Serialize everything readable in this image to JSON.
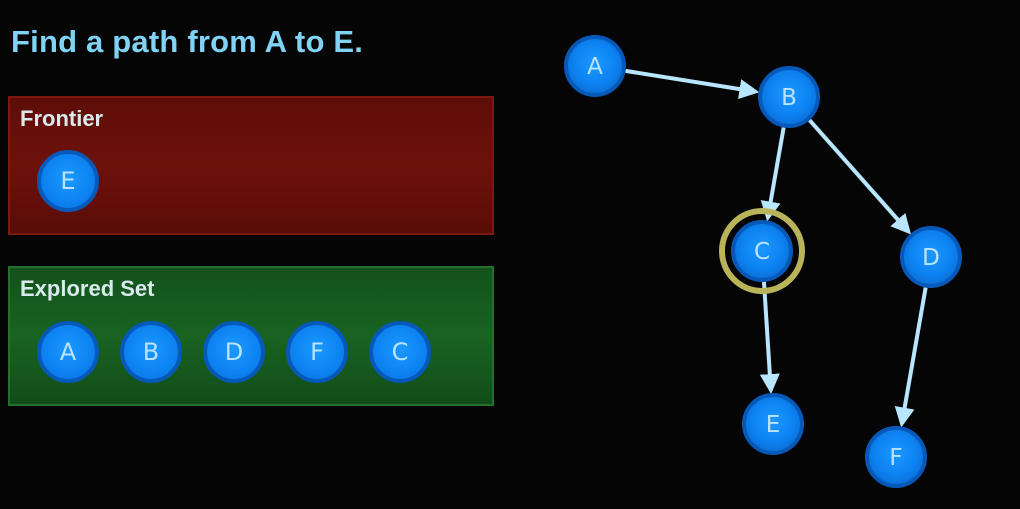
{
  "title": "Find a path from A to E.",
  "frontier": {
    "label": "Frontier",
    "nodes": [
      "E"
    ]
  },
  "explored": {
    "label": "Explored Set",
    "nodes": [
      "A",
      "B",
      "D",
      "F",
      "C"
    ]
  },
  "graph": {
    "nodes": [
      {
        "id": "A",
        "label": "A"
      },
      {
        "id": "B",
        "label": "B"
      },
      {
        "id": "C",
        "label": "C",
        "highlighted": true
      },
      {
        "id": "D",
        "label": "D"
      },
      {
        "id": "E",
        "label": "E"
      },
      {
        "id": "F",
        "label": "F"
      }
    ],
    "edges": [
      {
        "from": "A",
        "to": "B"
      },
      {
        "from": "B",
        "to": "C"
      },
      {
        "from": "B",
        "to": "D"
      },
      {
        "from": "C",
        "to": "E"
      },
      {
        "from": "D",
        "to": "F"
      }
    ]
  },
  "colors": {
    "title": "#7fd3f5",
    "node_fill": "#0d82f2",
    "node_border": "#0759b9",
    "node_text": "#b9e2ff",
    "edge": "#b8e6ff",
    "highlight_ring": "#b9b35a",
    "frontier_bg": "#6e110b",
    "explored_bg": "#186322"
  }
}
